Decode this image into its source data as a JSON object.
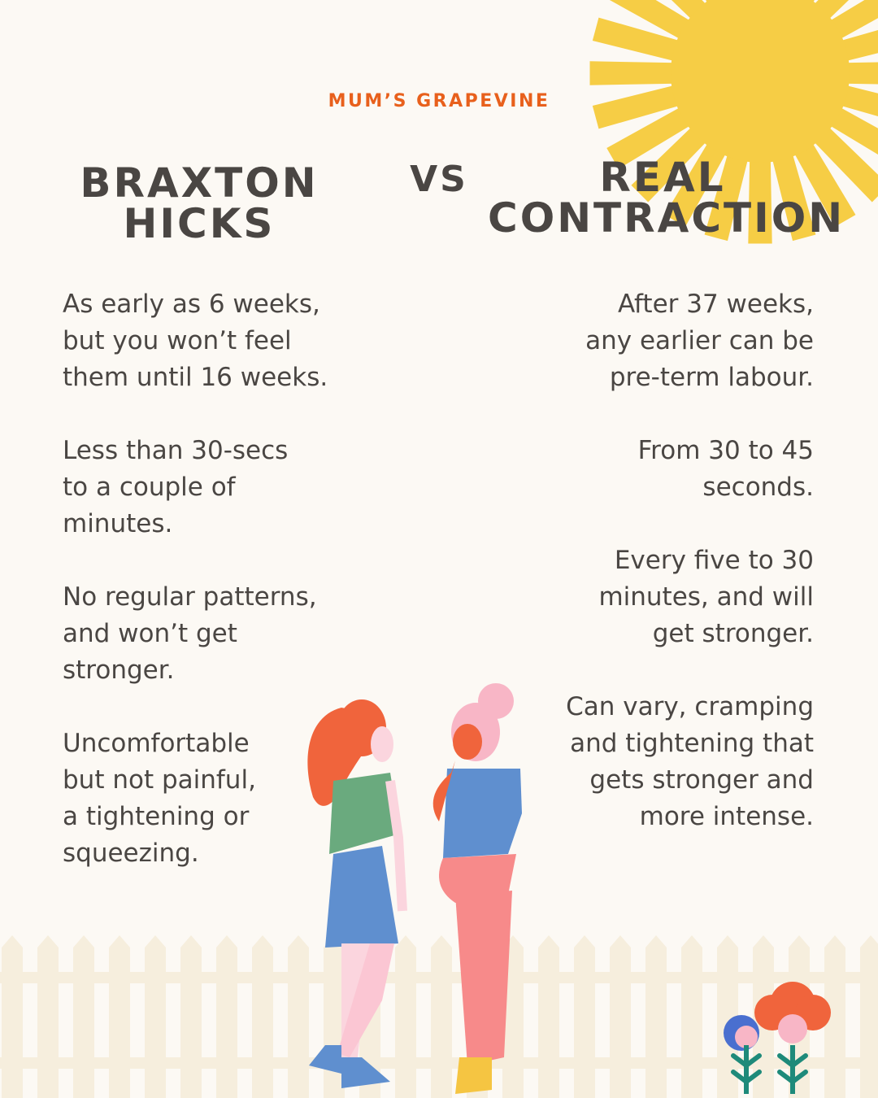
{
  "brand": "MUM’S GRAPEVINE",
  "left": {
    "heading": [
      "BRAXTON",
      "HICKS"
    ],
    "items": [
      [
        "As early as 6 weeks,",
        "but you won’t feel",
        "them until 16 weeks."
      ],
      [
        "Less than 30-secs",
        "to a couple of",
        "minutes."
      ],
      [
        "No regular patterns,",
        "and won’t get",
        "stronger."
      ],
      [
        "Uncomfortable",
        "but not painful,",
        "a tightening or",
        "squeezing."
      ]
    ]
  },
  "vs": "VS",
  "right": {
    "heading": [
      "REAL",
      "CONTRACTION"
    ],
    "items": [
      [
        "After 37 weeks,",
        "any earlier can be",
        "pre-term labour."
      ],
      [
        "From 30 to 45",
        "seconds."
      ],
      [
        "Every five to 30",
        "minutes, and will",
        "get stronger."
      ],
      [
        "Can vary, cramping",
        "and tightening that",
        "gets stronger and",
        "more intense."
      ]
    ]
  }
}
